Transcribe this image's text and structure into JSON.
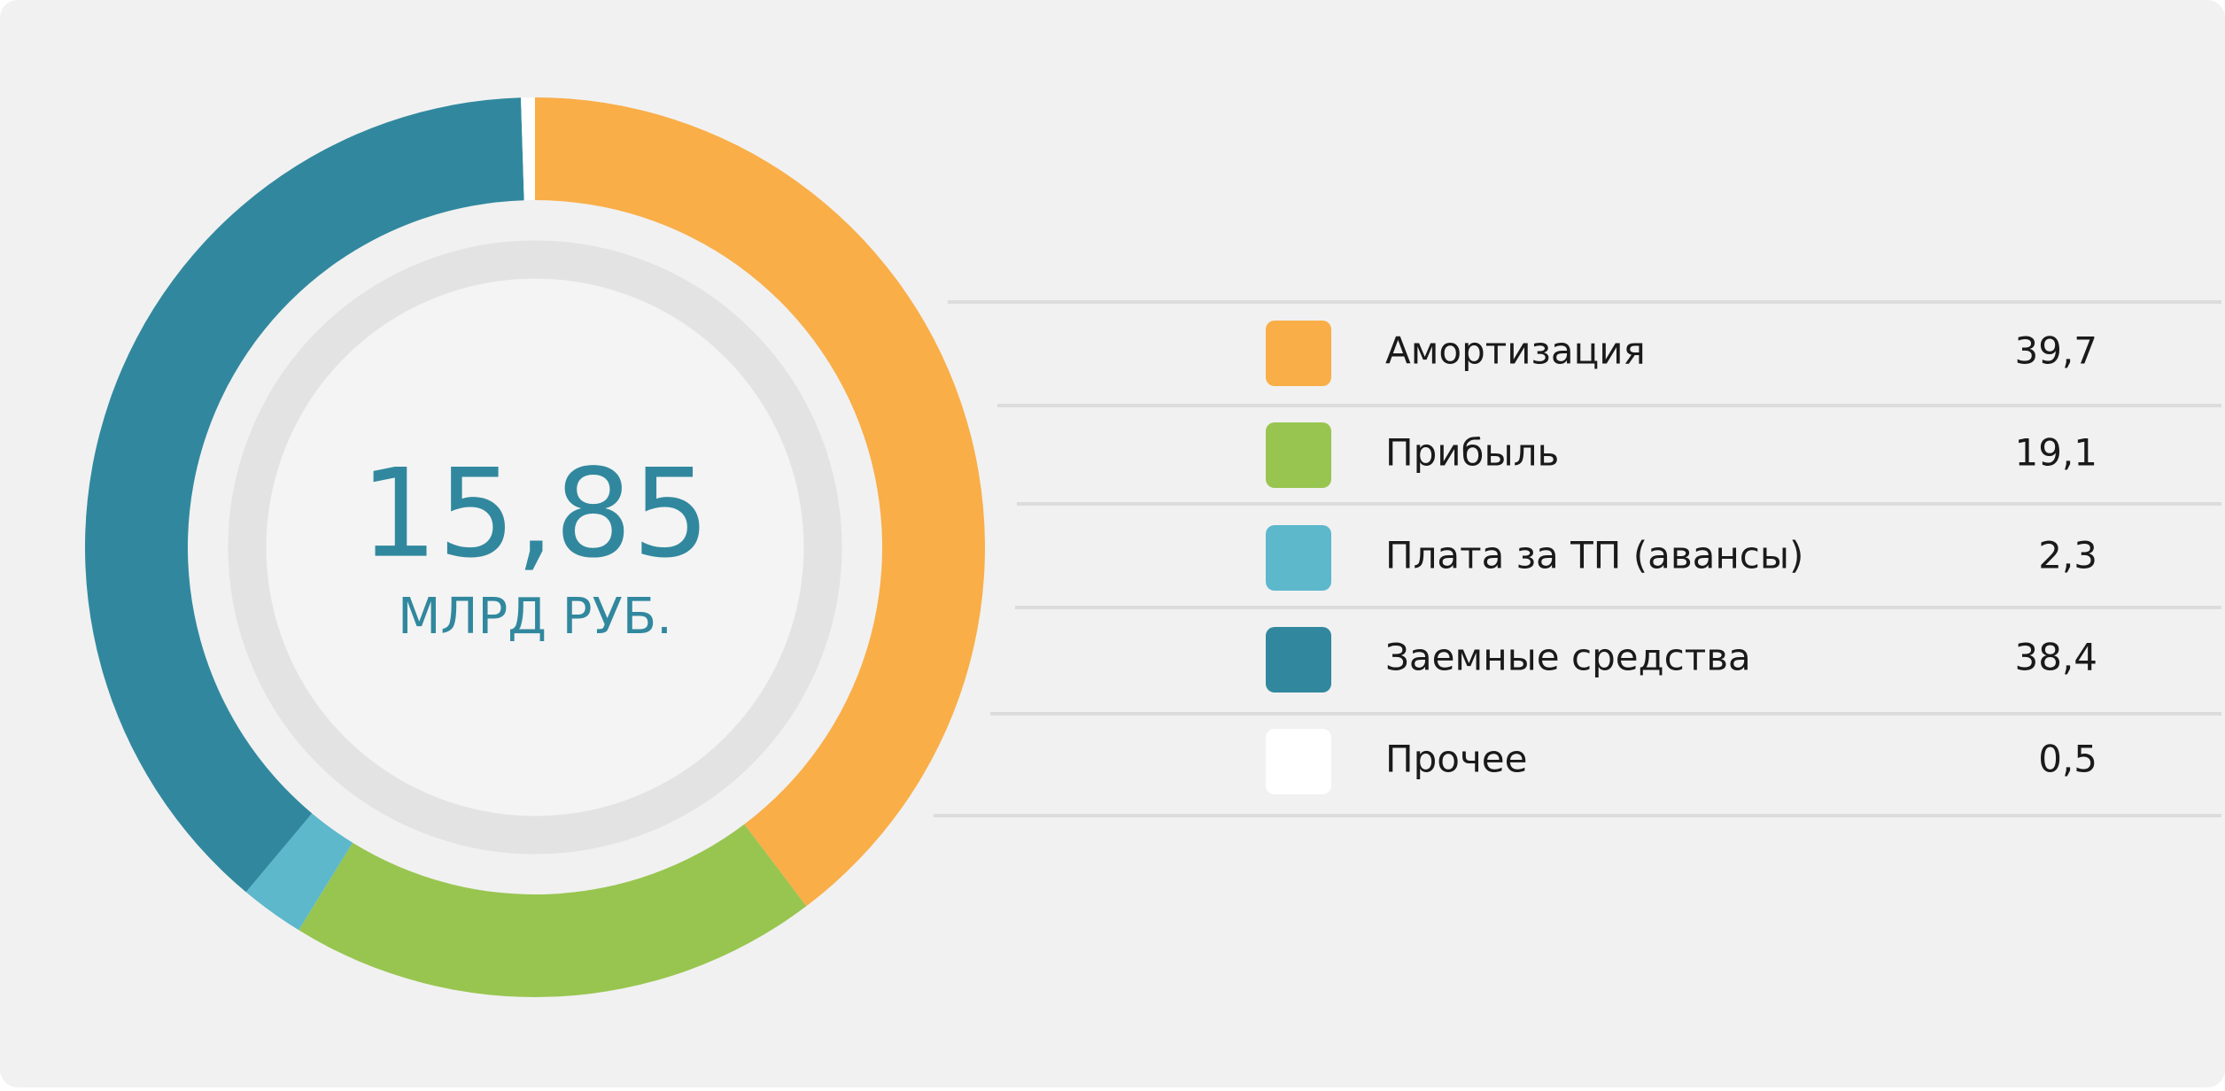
{
  "chart_data": {
    "type": "pie",
    "donut": true,
    "center_text": "15,85",
    "center_subtext": "МЛРД РУБ.",
    "categories": [
      "Амортизация",
      "Прибыль",
      "Плата за ТП (авансы)",
      "Заемные средства",
      "Прочее"
    ],
    "values": [
      39.7,
      19.1,
      2.3,
      38.4,
      0.5
    ],
    "value_labels": [
      "39,7",
      "19,1",
      "2,3",
      "38,4",
      "0,5"
    ],
    "colors": [
      "#f9ae48",
      "#98c550",
      "#5db8cc",
      "#31889e",
      "#ffffff"
    ]
  }
}
